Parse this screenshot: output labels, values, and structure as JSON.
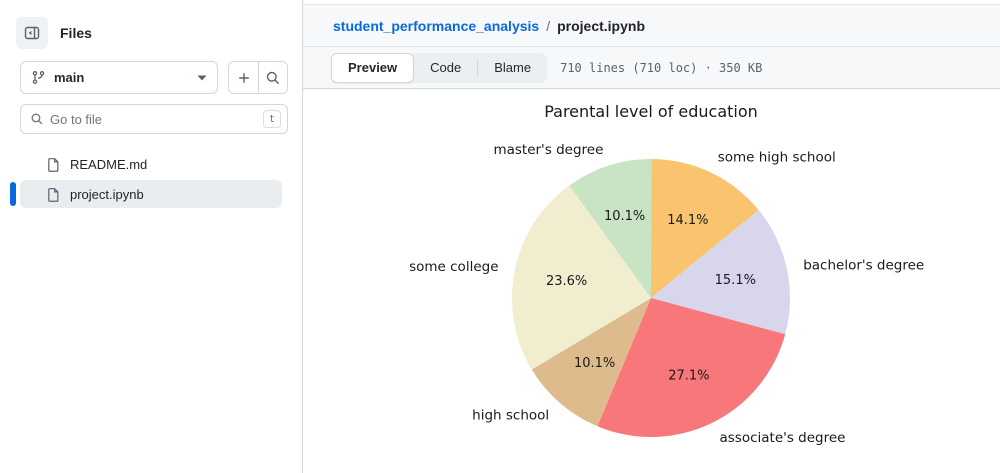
{
  "sidebar": {
    "title": "Files",
    "branch": {
      "name": "main"
    },
    "file_search": {
      "placeholder": "Go to file",
      "shortcut": "t"
    },
    "files": [
      {
        "name": "README.md",
        "selected": false
      },
      {
        "name": "project.ipynb",
        "selected": true
      }
    ]
  },
  "header": {
    "breadcrumb": {
      "repo": "student_performance_analysis",
      "separator": "/",
      "file": "project.ipynb"
    },
    "tabs": [
      {
        "label": "Preview",
        "active": true
      },
      {
        "label": "Code",
        "active": false
      },
      {
        "label": "Blame",
        "active": false
      }
    ],
    "meta": "710 lines (710 loc) · 350 KB"
  },
  "colors": {
    "accent_blue": "#0969da",
    "selected_row_bg": "#eaedf0",
    "border": "#d0d7de"
  },
  "chart_data": {
    "type": "pie",
    "title": "Parental level of education",
    "start_angle_deg": 90,
    "direction": "clockwise",
    "label_distance": 1.12,
    "pct_distance": 0.62,
    "slices": [
      {
        "label": "some high school",
        "value": 14.1,
        "color": "#f9c46d"
      },
      {
        "label": "bachelor's degree",
        "value": 15.1,
        "color": "#d8d6ec"
      },
      {
        "label": "associate's degree",
        "value": 27.1,
        "color": "#f8777a"
      },
      {
        "label": "high school",
        "value": 10.1,
        "color": "#debb8d"
      },
      {
        "label": "some college",
        "value": 23.6,
        "color": "#f1edcf"
      },
      {
        "label": "master's degree",
        "value": 10.1,
        "color": "#c9e3c5"
      }
    ]
  }
}
